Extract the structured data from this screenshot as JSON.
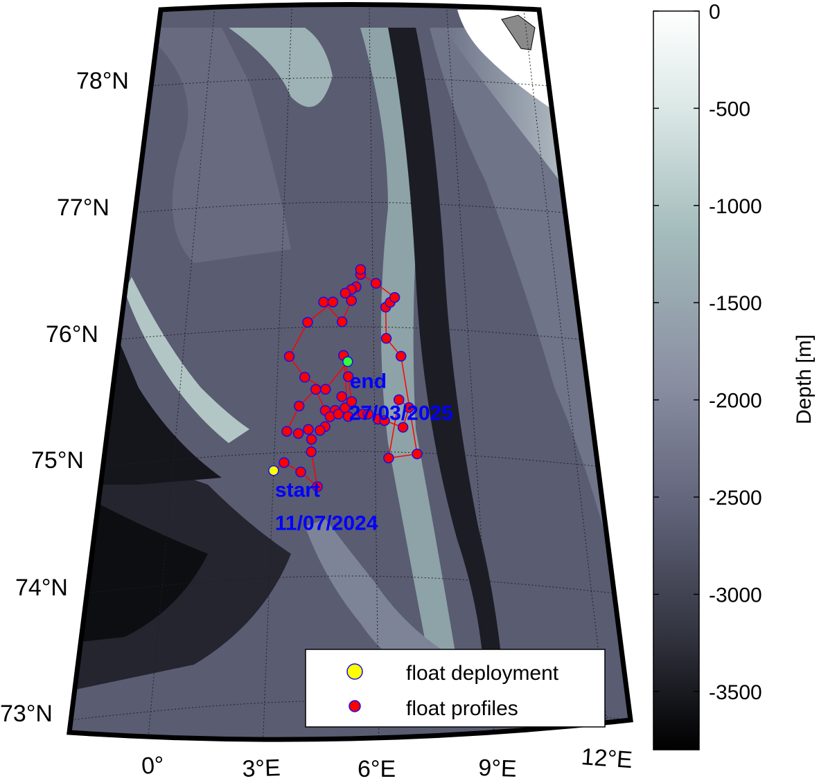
{
  "map": {
    "lat_labels": [
      "78°N",
      "77°N",
      "76°N",
      "75°N",
      "74°N",
      "73°N"
    ],
    "lon_labels": [
      "0°",
      "3°E",
      "6°E",
      "9°E",
      "12°E"
    ],
    "colors": {
      "track": "#ff0000",
      "profile_fill": "#ff0000",
      "profile_edge": "#1010ee",
      "deployment_fill": "#ffff00",
      "end_fill": "#33ff33",
      "annotation": "#0000ff"
    },
    "annotations": {
      "start": {
        "label": "start",
        "date": "11/07/2024"
      },
      "end": {
        "label": "end",
        "date": "27/03/2025"
      }
    },
    "deployment": {
      "lon": 3.0,
      "lat": 74.86
    },
    "end_point": {
      "lon": 5.18,
      "lat": 75.72
    },
    "profiles": [
      [
        3.3,
        74.92
      ],
      [
        3.8,
        74.84
      ],
      [
        4.3,
        74.72
      ],
      [
        4.1,
        75.0
      ],
      [
        4.1,
        75.1
      ],
      [
        4.0,
        75.18
      ],
      [
        3.7,
        75.15
      ],
      [
        3.35,
        75.17
      ],
      [
        3.7,
        75.37
      ],
      [
        4.2,
        75.5
      ],
      [
        4.5,
        75.33
      ],
      [
        4.8,
        75.33
      ],
      [
        4.65,
        75.28
      ],
      [
        4.5,
        75.2
      ],
      [
        4.35,
        75.17
      ],
      [
        4.9,
        75.3
      ],
      [
        5.1,
        75.35
      ],
      [
        5.0,
        75.44
      ],
      [
        5.3,
        75.4
      ],
      [
        5.2,
        75.6
      ],
      [
        5.05,
        75.77
      ],
      [
        5.2,
        75.28
      ],
      [
        5.65,
        75.3
      ],
      [
        5.8,
        75.3
      ],
      [
        6.1,
        75.26
      ],
      [
        6.3,
        75.25
      ],
      [
        6.85,
        75.2
      ],
      [
        7.05,
        75.36
      ],
      [
        6.75,
        75.42
      ],
      [
        6.4,
        74.95
      ],
      [
        7.25,
        74.99
      ],
      [
        6.85,
        75.77
      ],
      [
        6.4,
        75.91
      ],
      [
        6.4,
        76.16
      ],
      [
        6.55,
        76.2
      ],
      [
        6.7,
        76.24
      ],
      [
        6.1,
        76.35
      ],
      [
        5.6,
        76.42
      ],
      [
        5.6,
        76.46
      ],
      [
        5.45,
        76.32
      ],
      [
        5.3,
        76.3
      ],
      [
        5.1,
        76.27
      ],
      [
        5.3,
        76.21
      ],
      [
        5.0,
        76.04
      ],
      [
        4.4,
        76.2
      ],
      [
        4.7,
        76.2
      ],
      [
        3.9,
        76.04
      ],
      [
        3.35,
        75.77
      ],
      [
        3.85,
        75.6
      ],
      [
        4.5,
        75.5
      ]
    ]
  },
  "colorbar": {
    "label": "Depth [m]",
    "min": -3800,
    "max": 0,
    "ticks": [
      "0",
      "-500",
      "-1000",
      "-1500",
      "-2000",
      "-2500",
      "-3000",
      "-3500"
    ],
    "tick_values": [
      0,
      -500,
      -1000,
      -1500,
      -2000,
      -2500,
      -3000,
      -3500
    ]
  },
  "legend": {
    "items": [
      {
        "label": "float deployment",
        "fill": "#ffff00",
        "edge": "#1010ee"
      },
      {
        "label": "float profiles",
        "fill": "#ff0000",
        "edge": "#1010ee"
      }
    ]
  }
}
